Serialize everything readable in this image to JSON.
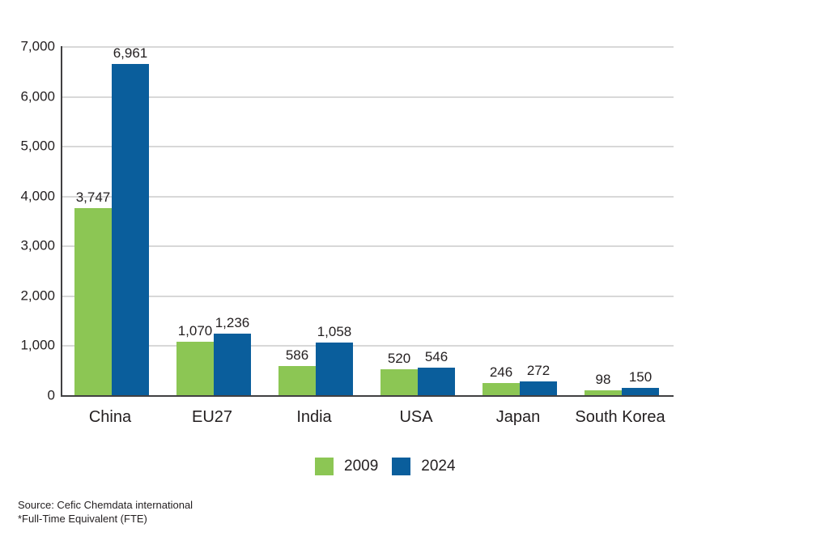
{
  "chart_data": {
    "type": "bar",
    "categories": [
      "China",
      "EU27",
      "India",
      "USA",
      "Japan",
      "South Korea"
    ],
    "series": [
      {
        "name": "2009",
        "color": "#8CC654",
        "values": [
          3747,
          1070,
          586,
          520,
          246,
          98
        ],
        "display": [
          "3,747",
          "1,070",
          "586",
          "520",
          "246",
          "98"
        ]
      },
      {
        "name": "2024",
        "color": "#0A5E9C",
        "values": [
          6961,
          1236,
          1058,
          546,
          272,
          150
        ],
        "display": [
          "6,961",
          "1,236",
          "1,058",
          "546",
          "272",
          "150"
        ]
      }
    ],
    "title": "",
    "xlabel": "",
    "ylabel": "",
    "ylim": [
      0,
      7000
    ],
    "ytick_step": 1000,
    "ytick_labels": [
      "0",
      "1,000",
      "2,000",
      "3,000",
      "4,000",
      "5,000",
      "6,000",
      "7,000"
    ],
    "grid": "horizontal",
    "legend_position": "bottom"
  },
  "colors": {
    "green": "#8CC654",
    "blue": "#0A5E9C",
    "gridline": "#D8D8D8",
    "axis": "#414042",
    "text": "#231F20"
  },
  "footer": {
    "source": "Source: Cefic Chemdata international",
    "note": "*Full-Time Equivalent (FTE)"
  }
}
